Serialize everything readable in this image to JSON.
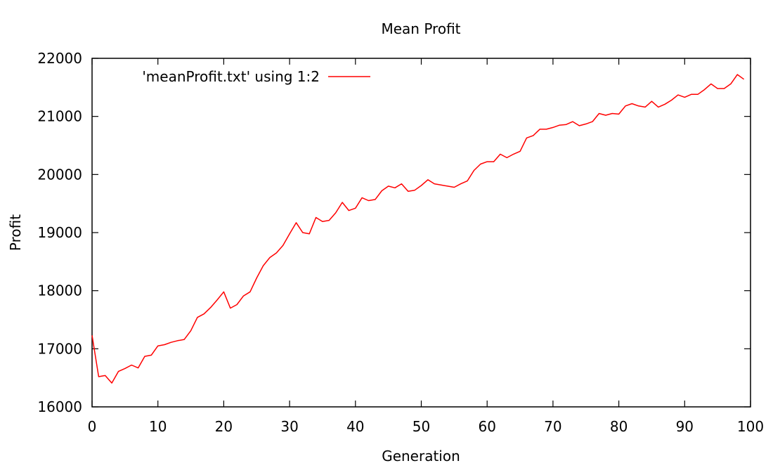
{
  "chart_data": {
    "type": "line",
    "title": "Mean Profit",
    "xlabel": "Generation",
    "ylabel": "Profit",
    "xlim": [
      0,
      100
    ],
    "ylim": [
      16000,
      22000
    ],
    "xticks": [
      "0",
      "10",
      "20",
      "30",
      "40",
      "50",
      "60",
      "70",
      "80",
      "90",
      "100"
    ],
    "yticks": [
      "16000",
      "17000",
      "18000",
      "19000",
      "20000",
      "21000",
      "22000"
    ],
    "grid": false,
    "legend": {
      "placement": "top-left",
      "entry": "'meanProfit.txt' using 1:2"
    },
    "series": [
      {
        "color": "#ff0000",
        "x": [
          0,
          1,
          2,
          3,
          4,
          5,
          6,
          7,
          8,
          9,
          10,
          11,
          12,
          13,
          14,
          15,
          16,
          17,
          18,
          19,
          20,
          21,
          22,
          23,
          24,
          25,
          26,
          27,
          28,
          29,
          30,
          31,
          32,
          33,
          34,
          35,
          36,
          37,
          38,
          39,
          40,
          41,
          42,
          43,
          44,
          45,
          46,
          47,
          48,
          49,
          50,
          51,
          52,
          53,
          54,
          55,
          56,
          57,
          58,
          59,
          60,
          61,
          62,
          63,
          64,
          65,
          66,
          67,
          68,
          69,
          70,
          71,
          72,
          73,
          74,
          75,
          76,
          77,
          78,
          79,
          80,
          81,
          82,
          83,
          84,
          85,
          86,
          87,
          88,
          89,
          90,
          91,
          92,
          93,
          94,
          95,
          96,
          97,
          98,
          99
        ],
        "y": [
          17230,
          16520,
          16540,
          16410,
          16610,
          16660,
          16720,
          16670,
          16870,
          16890,
          17050,
          17070,
          17110,
          17140,
          17160,
          17310,
          17540,
          17600,
          17710,
          17840,
          17980,
          17700,
          17760,
          17910,
          17980,
          18220,
          18430,
          18570,
          18650,
          18780,
          18980,
          19170,
          19000,
          18980,
          19260,
          19190,
          19210,
          19340,
          19520,
          19380,
          19420,
          19600,
          19550,
          19570,
          19720,
          19800,
          19770,
          19840,
          19710,
          19730,
          19810,
          19910,
          19840,
          19820,
          19800,
          19780,
          19840,
          19890,
          20070,
          20180,
          20220,
          20220,
          20350,
          20290,
          20350,
          20400,
          20630,
          20670,
          20780,
          20780,
          20810,
          20850,
          20860,
          20910,
          20840,
          20870,
          20910,
          21050,
          21020,
          21050,
          21040,
          21180,
          21220,
          21180,
          21160,
          21260,
          21160,
          21210,
          21280,
          21370,
          21330,
          21380,
          21380,
          21460,
          21560,
          21480,
          21480,
          21560,
          21720,
          21640
        ]
      }
    ]
  }
}
